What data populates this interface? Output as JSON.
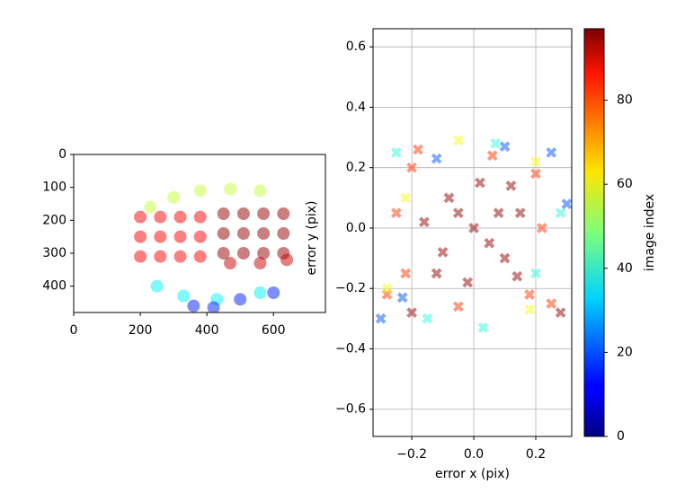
{
  "chart_data": [
    {
      "type": "scatter",
      "marker": "o",
      "alpha": 0.5,
      "colormap": "jet",
      "clim": [
        0,
        97
      ],
      "grid": false,
      "xlim": [
        0,
        756
      ],
      "ylim": [
        480,
        0
      ],
      "xticks": [
        0,
        200,
        400,
        600
      ],
      "yticks": [
        0,
        100,
        200,
        300,
        400
      ],
      "x": [
        450,
        510,
        570,
        630,
        450,
        510,
        570,
        630,
        450,
        510,
        570,
        630,
        200,
        260,
        320,
        380,
        200,
        260,
        320,
        380,
        200,
        260,
        320,
        380,
        230,
        300,
        380,
        470,
        560,
        250,
        330,
        430,
        560,
        360,
        420,
        500,
        600,
        470,
        560,
        640
      ],
      "y": [
        180,
        180,
        180,
        180,
        240,
        240,
        240,
        240,
        300,
        300,
        300,
        300,
        190,
        190,
        190,
        190,
        250,
        250,
        250,
        250,
        310,
        310,
        310,
        310,
        160,
        130,
        110,
        105,
        110,
        400,
        430,
        440,
        420,
        460,
        465,
        440,
        420,
        330,
        330,
        320
      ],
      "c": [
        95,
        95,
        95,
        95,
        95,
        95,
        95,
        95,
        95,
        95,
        95,
        95,
        85,
        85,
        85,
        85,
        85,
        85,
        85,
        85,
        85,
        85,
        85,
        85,
        55,
        55,
        55,
        55,
        55,
        35,
        35,
        35,
        35,
        15,
        15,
        15,
        15,
        90,
        90,
        90
      ]
    },
    {
      "type": "scatter",
      "marker": "x",
      "alpha": 0.5,
      "colormap": "jet",
      "clim": [
        0,
        97
      ],
      "grid": true,
      "xlabel": "error x (pix)",
      "ylabel": "error y (pix)",
      "xlim": [
        -0.325,
        0.316
      ],
      "ylim": [
        -0.69,
        0.66
      ],
      "xticks": [
        {
          "value": -0.2,
          "label": "−0.2"
        },
        {
          "value": 0,
          "label": "0.0"
        },
        0.2
      ],
      "yticks": [
        {
          "value": -0.6,
          "label": "−0.6"
        },
        {
          "value": -0.4,
          "label": "−0.4"
        },
        {
          "value": -0.2,
          "label": "−0.2"
        },
        {
          "value": 0,
          "label": "0.0"
        },
        0.2,
        0.4,
        0.6
      ],
      "colorbar": {
        "label": "image index",
        "ticks": [
          0,
          20,
          40,
          60,
          80
        ]
      },
      "x": [
        0,
        0.08,
        -0.08,
        -0.1,
        0.1,
        0.02,
        -0.02,
        0.15,
        -0.16,
        0.05,
        -0.05,
        0.12,
        -0.12,
        0.14,
        -0.2,
        0.2,
        -0.22,
        0.18,
        -0.05,
        0.06,
        -0.25,
        0.22,
        -0.28,
        0.25,
        -0.18,
        -0.05,
        0.2,
        -0.28,
        0.18,
        -0.22,
        0.03,
        0.28,
        -0.25,
        0.2,
        0.07,
        -0.15,
        -0.12,
        0.1,
        0.25,
        -0.23,
        0.3,
        -0.3,
        0.28,
        -0.2
      ],
      "y": [
        0,
        0.05,
        0.1,
        -0.08,
        -0.1,
        0.15,
        -0.18,
        0.05,
        0.02,
        -0.05,
        0.05,
        0.14,
        -0.15,
        -0.16,
        0.2,
        0.18,
        -0.15,
        -0.22,
        -0.26,
        0.24,
        0.05,
        0,
        -0.22,
        -0.25,
        0.26,
        0.29,
        0.22,
        -0.2,
        -0.27,
        0.1,
        -0.33,
        0.05,
        0.25,
        -0.15,
        0.28,
        -0.3,
        0.23,
        0.27,
        0.25,
        -0.23,
        0.08,
        -0.3,
        -0.28,
        -0.28
      ],
      "c": [
        95,
        95,
        95,
        95,
        95,
        95,
        95,
        95,
        95,
        95,
        95,
        95,
        95,
        95,
        80,
        80,
        80,
        80,
        80,
        80,
        80,
        80,
        80,
        80,
        80,
        60,
        60,
        60,
        60,
        60,
        40,
        40,
        40,
        40,
        40,
        40,
        20,
        20,
        20,
        20,
        20,
        20,
        95,
        95
      ]
    }
  ]
}
